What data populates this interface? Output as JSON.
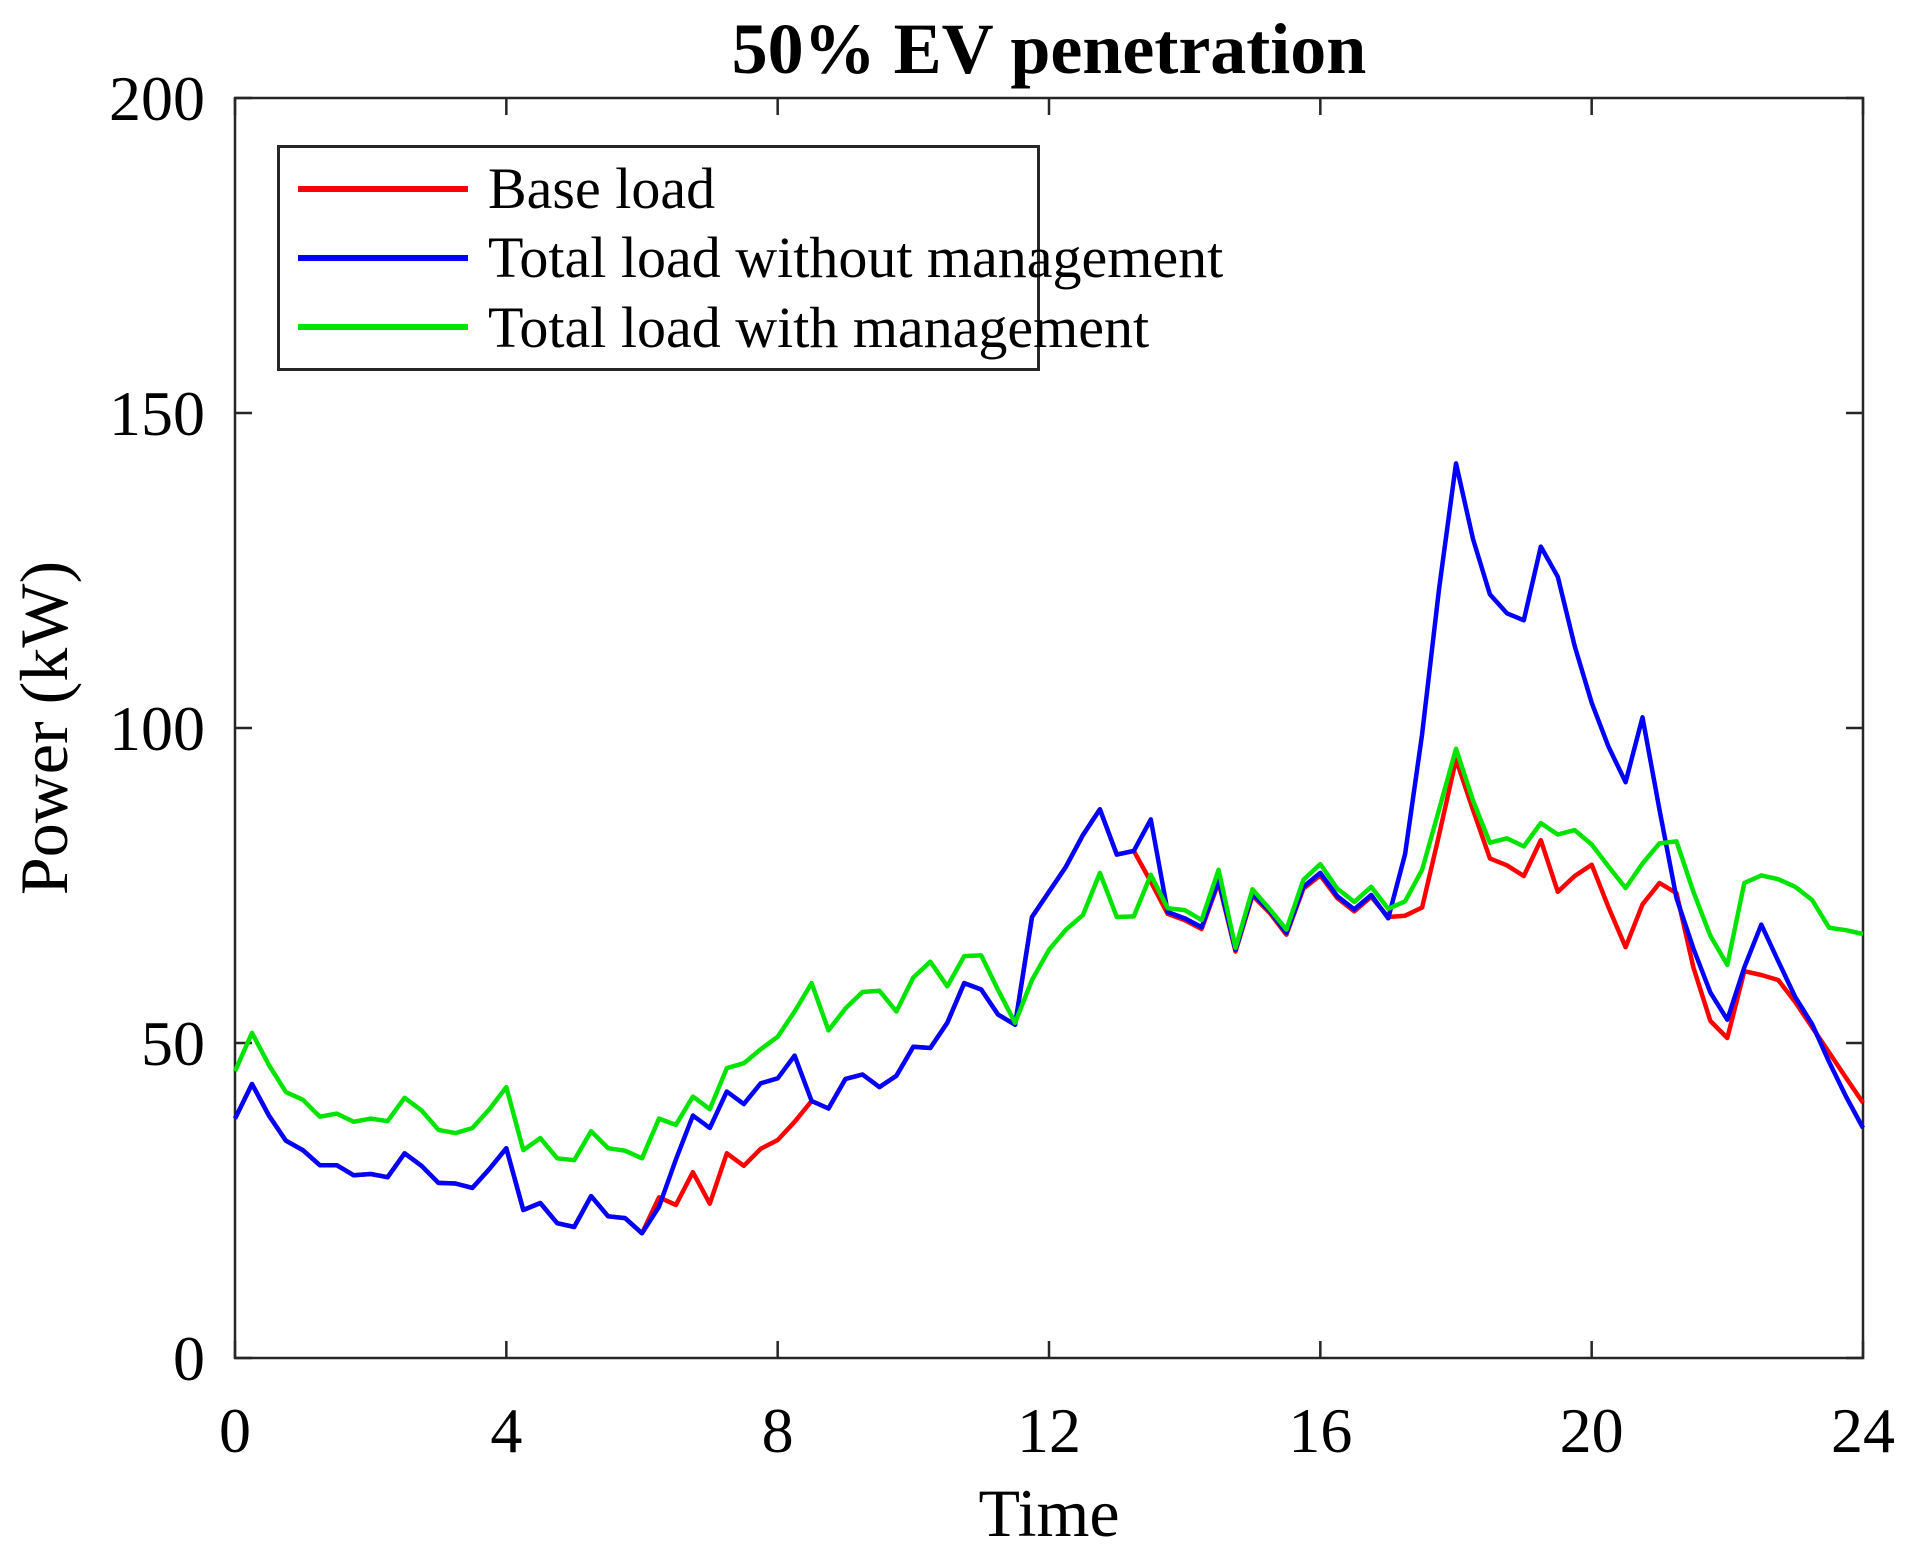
{
  "chart_data": {
    "type": "line",
    "title": "50% EV penetration",
    "xlabel": "Time",
    "ylabel": "Power (kW)",
    "xlim": [
      0,
      24
    ],
    "ylim": [
      0,
      200
    ],
    "x_ticks": [
      0,
      4,
      8,
      12,
      16,
      20,
      24
    ],
    "x_tick_labels": [
      "0",
      "4",
      "8",
      "12",
      "16",
      "20",
      "24"
    ],
    "y_ticks": [
      0,
      50,
      100,
      150,
      200
    ],
    "y_tick_labels": [
      "0",
      "50",
      "100",
      "150",
      "200"
    ],
    "grid": false,
    "legend_position": "top-left-inside",
    "axis_color": "#262626",
    "x": [
      0,
      0.25,
      0.5,
      0.75,
      1,
      1.25,
      1.5,
      1.75,
      2,
      2.25,
      2.5,
      2.75,
      3,
      3.25,
      3.5,
      3.75,
      4,
      4.25,
      4.5,
      4.75,
      5,
      5.25,
      5.5,
      5.75,
      6,
      6.25,
      6.5,
      6.75,
      7,
      7.25,
      7.5,
      7.75,
      8,
      8.25,
      8.5,
      8.75,
      9,
      9.25,
      9.5,
      9.75,
      10,
      10.25,
      10.5,
      10.75,
      11,
      11.25,
      11.5,
      11.75,
      12,
      12.25,
      12.5,
      12.75,
      13,
      13.25,
      13.5,
      13.75,
      14,
      14.25,
      14.5,
      14.75,
      15,
      15.25,
      15.5,
      15.75,
      16,
      16.25,
      16.5,
      16.75,
      17,
      17.25,
      17.5,
      17.75,
      18,
      18.25,
      18.5,
      18.75,
      19,
      19.25,
      19.5,
      19.75,
      20,
      20.25,
      20.5,
      20.75,
      21,
      21.25,
      21.5,
      21.75,
      22,
      22.25,
      22.5,
      22.75,
      23,
      23.25,
      23.5,
      23.75,
      24
    ],
    "series": [
      {
        "name": "Base load",
        "color": "#FF0000",
        "values": [
          38.0,
          43.5,
          38.5,
          34.5,
          33.0,
          30.6,
          30.6,
          29.0,
          29.2,
          28.7,
          32.5,
          30.5,
          27.8,
          27.7,
          27.0,
          30.0,
          33.3,
          23.5,
          24.6,
          21.4,
          20.8,
          25.7,
          22.5,
          22.2,
          19.8,
          25.5,
          24.3,
          29.5,
          24.5,
          32.5,
          30.5,
          33.2,
          34.6,
          37.5,
          40.8,
          39.6,
          44.3,
          45.0,
          43.0,
          44.8,
          49.4,
          49.2,
          53.2,
          59.5,
          58.5,
          54.5,
          52.9,
          70.0,
          74.0,
          78.0,
          83.0,
          87.1,
          79.9,
          80.5,
          75.6,
          70.5,
          69.5,
          68.1,
          75.5,
          64.5,
          73.4,
          70.7,
          67.2,
          74.5,
          76.6,
          73.0,
          70.9,
          73.2,
          70.0,
          70.2,
          71.5,
          83.0,
          95.0,
          87.0,
          79.3,
          78.2,
          76.5,
          82.2,
          74.0,
          76.5,
          78.3,
          71.5,
          65.2,
          72.0,
          75.4,
          73.8,
          62.0,
          53.5,
          50.8,
          61.4,
          60.8,
          60.0,
          56.5,
          52.5,
          48.5,
          44.5,
          40.5
        ]
      },
      {
        "name": "Total load without management",
        "color": "#0000FF",
        "values": [
          38.0,
          43.5,
          38.5,
          34.5,
          33.0,
          30.6,
          30.6,
          29.0,
          29.2,
          28.7,
          32.5,
          30.5,
          27.8,
          27.7,
          27.0,
          30.0,
          33.3,
          23.5,
          24.6,
          21.4,
          20.8,
          25.7,
          22.5,
          22.2,
          19.8,
          24.0,
          31.5,
          38.5,
          36.5,
          42.3,
          40.3,
          43.6,
          44.4,
          48.0,
          40.8,
          39.6,
          44.3,
          45.0,
          43.0,
          44.8,
          49.4,
          49.2,
          53.2,
          59.5,
          58.5,
          54.5,
          52.9,
          70.0,
          74.0,
          78.0,
          83.0,
          87.1,
          79.9,
          80.5,
          85.5,
          70.8,
          69.8,
          68.4,
          75.8,
          64.8,
          73.7,
          71.0,
          67.5,
          74.8,
          77.0,
          73.3,
          71.2,
          73.5,
          69.8,
          80.0,
          99.0,
          122.0,
          142.0,
          130.0,
          121.2,
          118.2,
          117.1,
          128.8,
          124.0,
          113.0,
          104.0,
          97.0,
          91.4,
          101.7,
          87.0,
          73.0,
          65.0,
          58.0,
          53.7,
          62.0,
          68.8,
          63.0,
          57.3,
          53.0,
          47.0,
          41.5,
          36.5
        ]
      },
      {
        "name": "Total load with management",
        "color": "#00E400",
        "values": [
          45.5,
          51.6,
          46.5,
          42.2,
          41.0,
          38.3,
          38.8,
          37.5,
          38.0,
          37.6,
          41.3,
          39.3,
          36.2,
          35.7,
          36.5,
          39.5,
          43.0,
          33.0,
          34.9,
          31.7,
          31.4,
          36.0,
          33.3,
          32.9,
          31.7,
          38.0,
          37.0,
          41.5,
          39.5,
          46.0,
          46.8,
          49.0,
          51.0,
          55.0,
          59.5,
          52.0,
          55.5,
          58.1,
          58.3,
          55.0,
          60.4,
          62.9,
          59.0,
          63.8,
          63.9,
          58.4,
          53.2,
          60.0,
          64.8,
          68.0,
          70.3,
          77.0,
          70.0,
          70.1,
          76.7,
          71.4,
          71.1,
          69.5,
          77.5,
          65.1,
          74.4,
          71.3,
          68.0,
          75.9,
          78.4,
          74.5,
          72.4,
          74.8,
          71.3,
          72.5,
          77.5,
          87.0,
          96.7,
          88.5,
          81.8,
          82.5,
          81.2,
          84.9,
          83.1,
          83.8,
          81.5,
          78.0,
          74.6,
          78.5,
          81.7,
          82.0,
          74.0,
          67.0,
          62.4,
          75.4,
          76.6,
          76.0,
          74.8,
          72.7,
          68.3,
          67.9,
          67.3
        ]
      }
    ]
  },
  "legend": {
    "items": [
      {
        "label": "Base load",
        "color": "#FF0000"
      },
      {
        "label": "Total load without management",
        "color": "#0000FF"
      },
      {
        "label": "Total load with management",
        "color": "#00E400"
      }
    ]
  }
}
